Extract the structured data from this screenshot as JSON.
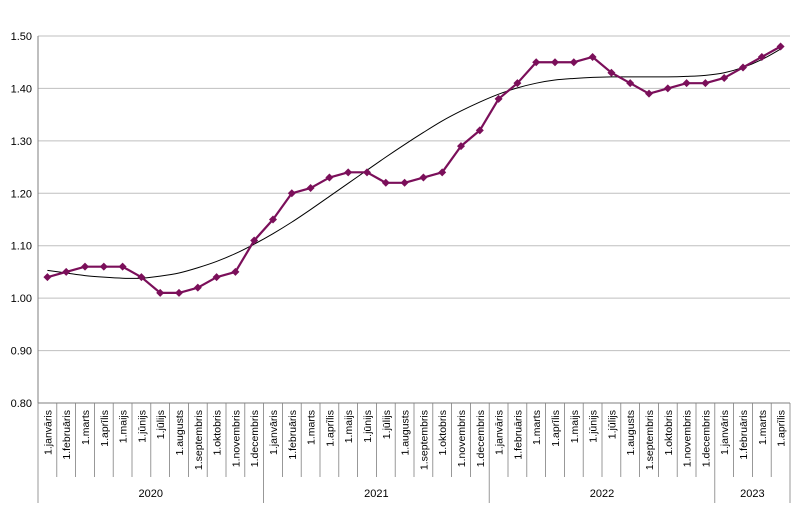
{
  "chart_data": {
    "type": "line",
    "title": "",
    "xlabel": "",
    "ylabel": "",
    "ylim": [
      0.8,
      1.5
    ],
    "ystep": 0.1,
    "grid": "horizontal",
    "legend": "none",
    "colors": {
      "series": "#7b0f5a",
      "trend": "#000000",
      "grid": "#bfbfbf",
      "axis": "#7f7f7f"
    },
    "month_labels": [
      "1.janvāris",
      "1.februāris",
      "1.marts",
      "1.aprīlis",
      "1.maijs",
      "1.jūnijs",
      "1.jūlijs",
      "1.augusts",
      "1.septembris",
      "1.oktobris",
      "1.novembris",
      "1.decembris"
    ],
    "years": [
      {
        "label": "2020",
        "count": 12
      },
      {
        "label": "2021",
        "count": 12
      },
      {
        "label": "2022",
        "count": 12
      },
      {
        "label": "2023",
        "count": 4
      }
    ],
    "series": [
      {
        "values": [
          1.04,
          1.05,
          1.06,
          1.06,
          1.06,
          1.04,
          1.01,
          1.01,
          1.02,
          1.04,
          1.05,
          1.11,
          1.15,
          1.2,
          1.21,
          1.23,
          1.24,
          1.24,
          1.22,
          1.22,
          1.23,
          1.24,
          1.29,
          1.32,
          1.38,
          1.41,
          1.45,
          1.45,
          1.45,
          1.46,
          1.43,
          1.41,
          1.39,
          1.4,
          1.41,
          1.41,
          1.42,
          1.44,
          1.46,
          1.48
        ]
      }
    ],
    "trendline": {
      "type": "polynomial",
      "values": [
        1.053,
        1.048,
        1.043,
        1.04,
        1.038,
        1.038,
        1.042,
        1.048,
        1.058,
        1.07,
        1.085,
        1.103,
        1.123,
        1.145,
        1.169,
        1.194,
        1.219,
        1.244,
        1.269,
        1.293,
        1.316,
        1.338,
        1.357,
        1.374,
        1.389,
        1.401,
        1.41,
        1.416,
        1.419,
        1.421,
        1.422,
        1.422,
        1.422,
        1.422,
        1.423,
        1.425,
        1.43,
        1.44,
        1.455,
        1.475
      ]
    }
  }
}
